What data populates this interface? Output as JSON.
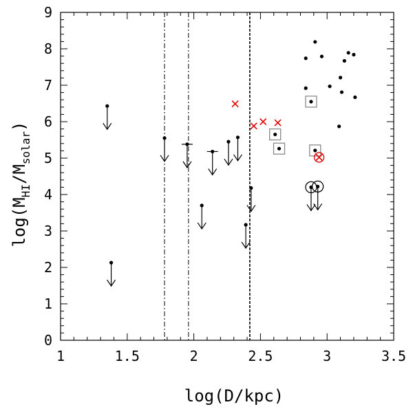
{
  "chart_data": {
    "type": "scatter",
    "title": "",
    "xlabel": "log(D/kpc)",
    "ylabel": {
      "prefix": "log(M",
      "sub1": "HI",
      "mid": "/M",
      "sub2": "solar",
      "suffix": ")"
    },
    "xlim": [
      1,
      3.5
    ],
    "ylim": [
      0,
      9
    ],
    "x_ticks": [
      1,
      1.5,
      2,
      2.5,
      3,
      3.5
    ],
    "x_tick_labels": [
      "1",
      "1.5",
      "2",
      "2.5",
      "3",
      "3.5"
    ],
    "y_ticks": [
      0,
      1,
      2,
      3,
      4,
      5,
      6,
      7,
      8,
      9
    ],
    "y_tick_labels": [
      "0",
      "1",
      "2",
      "3",
      "4",
      "5",
      "6",
      "7",
      "8",
      "9"
    ],
    "vertical_lines": [
      {
        "x": 1.78,
        "style": "dash-dot"
      },
      {
        "x": 1.96,
        "style": "dash-dot"
      },
      {
        "x": 2.42,
        "style": "dashed"
      }
    ],
    "detections": [
      [
        2.84,
        7.74
      ],
      [
        2.91,
        8.19
      ],
      [
        2.96,
        7.79
      ],
      [
        2.84,
        6.92
      ],
      [
        3.02,
        6.97
      ],
      [
        3.1,
        7.21
      ],
      [
        3.13,
        7.67
      ],
      [
        3.16,
        7.89
      ],
      [
        3.2,
        7.84
      ],
      [
        3.11,
        6.81
      ],
      [
        3.21,
        6.67
      ],
      [
        3.09,
        5.87
      ],
      [
        2.88,
        6.55
      ],
      [
        2.61,
        5.65
      ],
      [
        2.64,
        5.26
      ],
      [
        2.91,
        5.21
      ]
    ],
    "upper_limits": [
      [
        1.35,
        6.43
      ],
      [
        1.38,
        2.13
      ],
      [
        1.78,
        5.55
      ],
      [
        1.95,
        5.38
      ],
      [
        2.06,
        3.7
      ],
      [
        2.14,
        5.18
      ],
      [
        2.26,
        5.45
      ],
      [
        2.33,
        5.57
      ],
      [
        2.39,
        3.17
      ],
      [
        2.43,
        4.18
      ],
      [
        2.88,
        4.2
      ],
      [
        2.93,
        4.22
      ]
    ],
    "red_crosses": [
      [
        2.31,
        6.49
      ],
      [
        2.45,
        5.88
      ],
      [
        2.52,
        6.0
      ],
      [
        2.63,
        5.97
      ],
      [
        2.94,
        5.02
      ]
    ],
    "boxed_points": [
      [
        2.88,
        6.55
      ],
      [
        2.61,
        5.65
      ],
      [
        2.64,
        5.26
      ],
      [
        2.91,
        5.21
      ]
    ],
    "circled_points": [
      [
        2.88,
        4.2
      ],
      [
        2.93,
        4.22
      ]
    ],
    "horizontal_bars": [
      [
        1.95,
        5.38
      ],
      [
        2.14,
        5.18
      ]
    ],
    "circled_crosses": [
      [
        2.94,
        5.02
      ]
    ]
  }
}
